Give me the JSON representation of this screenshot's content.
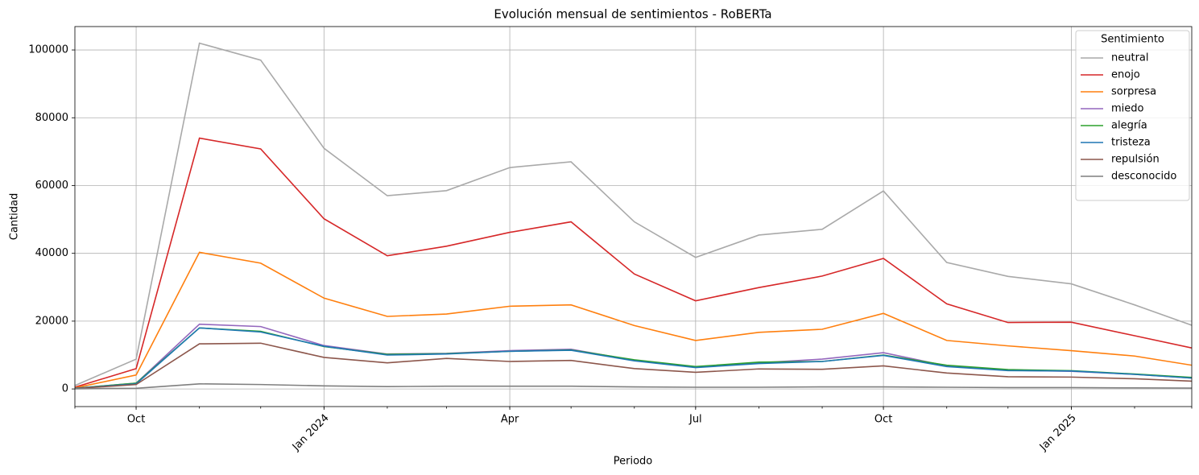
{
  "chart_data": {
    "type": "line",
    "title": "Evolución mensual de sentimientos - RoBERTa",
    "xlabel": "Periodo",
    "ylabel": "Cantidad",
    "legend_title": "Sentimiento",
    "legend": "upper right",
    "grid": true,
    "x": [
      "2023-09",
      "2023-10",
      "2023-11",
      "2023-12",
      "2024-01",
      "2024-02",
      "2024-03",
      "2024-04",
      "2024-05",
      "2024-06",
      "2024-07",
      "2024-08",
      "2024-09",
      "2024-10",
      "2024-11",
      "2024-12",
      "2025-01",
      "2025-02",
      "2025-03"
    ],
    "xlim": [
      "2023-09",
      "2025-03"
    ],
    "xticks": [
      {
        "value": "2023-10",
        "label": "Oct"
      },
      {
        "value": "2024-01",
        "label": "Jan 2024"
      },
      {
        "value": "2024-04",
        "label": "Apr"
      },
      {
        "value": "2024-07",
        "label": "Jul"
      },
      {
        "value": "2024-10",
        "label": "Oct"
      },
      {
        "value": "2025-01",
        "label": "Jan 2025"
      }
    ],
    "ylim": [
      -5200,
      106900
    ],
    "yticks": [
      0,
      20000,
      40000,
      60000,
      80000,
      100000
    ],
    "series": [
      {
        "name": "neutral",
        "color": "#a9a9a9",
        "values": [
          1000,
          8800,
          102000,
          97000,
          71000,
          57000,
          58500,
          65300,
          67000,
          49300,
          38800,
          45400,
          47100,
          58400,
          37300,
          33200,
          31000,
          24800,
          18800
        ]
      },
      {
        "name": "enojo",
        "color": "#d62728",
        "values": [
          500,
          6000,
          74000,
          70800,
          50200,
          39300,
          42100,
          46200,
          49300,
          33900,
          26000,
          29900,
          33300,
          38500,
          25100,
          19600,
          19700,
          15700,
          12100
        ]
      },
      {
        "name": "sorpresa",
        "color": "#ff7f0e",
        "values": [
          300,
          4100,
          40300,
          37100,
          26800,
          21400,
          22100,
          24400,
          24800,
          18700,
          14300,
          16700,
          17600,
          22300,
          14300,
          12700,
          11300,
          9700,
          7000
        ]
      },
      {
        "name": "miedo",
        "color": "#9467bd",
        "values": [
          200,
          1700,
          19100,
          18400,
          12800,
          10300,
          10500,
          11300,
          11700,
          8400,
          6400,
          7700,
          8800,
          10700,
          6800,
          5500,
          5200,
          4300,
          3200
        ]
      },
      {
        "name": "alegría",
        "color": "#2ca02c",
        "values": [
          200,
          1700,
          18000,
          17000,
          12500,
          10200,
          10400,
          11100,
          11500,
          8600,
          6600,
          7900,
          8100,
          10000,
          7000,
          5700,
          5400,
          4400,
          3400
        ]
      },
      {
        "name": "tristeza",
        "color": "#1f77b4",
        "values": [
          200,
          1500,
          18000,
          16800,
          12600,
          10000,
          10300,
          11100,
          11400,
          8300,
          6300,
          7500,
          8100,
          9900,
          6600,
          5400,
          5300,
          4300,
          3200
        ]
      },
      {
        "name": "repulsión",
        "color": "#8c564b",
        "values": [
          100,
          1300,
          13300,
          13500,
          9300,
          7700,
          9000,
          8100,
          8400,
          6000,
          4900,
          5900,
          5800,
          6800,
          4700,
          3600,
          3500,
          3000,
          2300
        ]
      },
      {
        "name": "desconocido",
        "color": "#7f7f7f",
        "values": [
          50,
          200,
          1500,
          1300,
          900,
          700,
          800,
          800,
          800,
          600,
          500,
          500,
          600,
          600,
          500,
          400,
          400,
          300,
          250
        ]
      }
    ]
  }
}
